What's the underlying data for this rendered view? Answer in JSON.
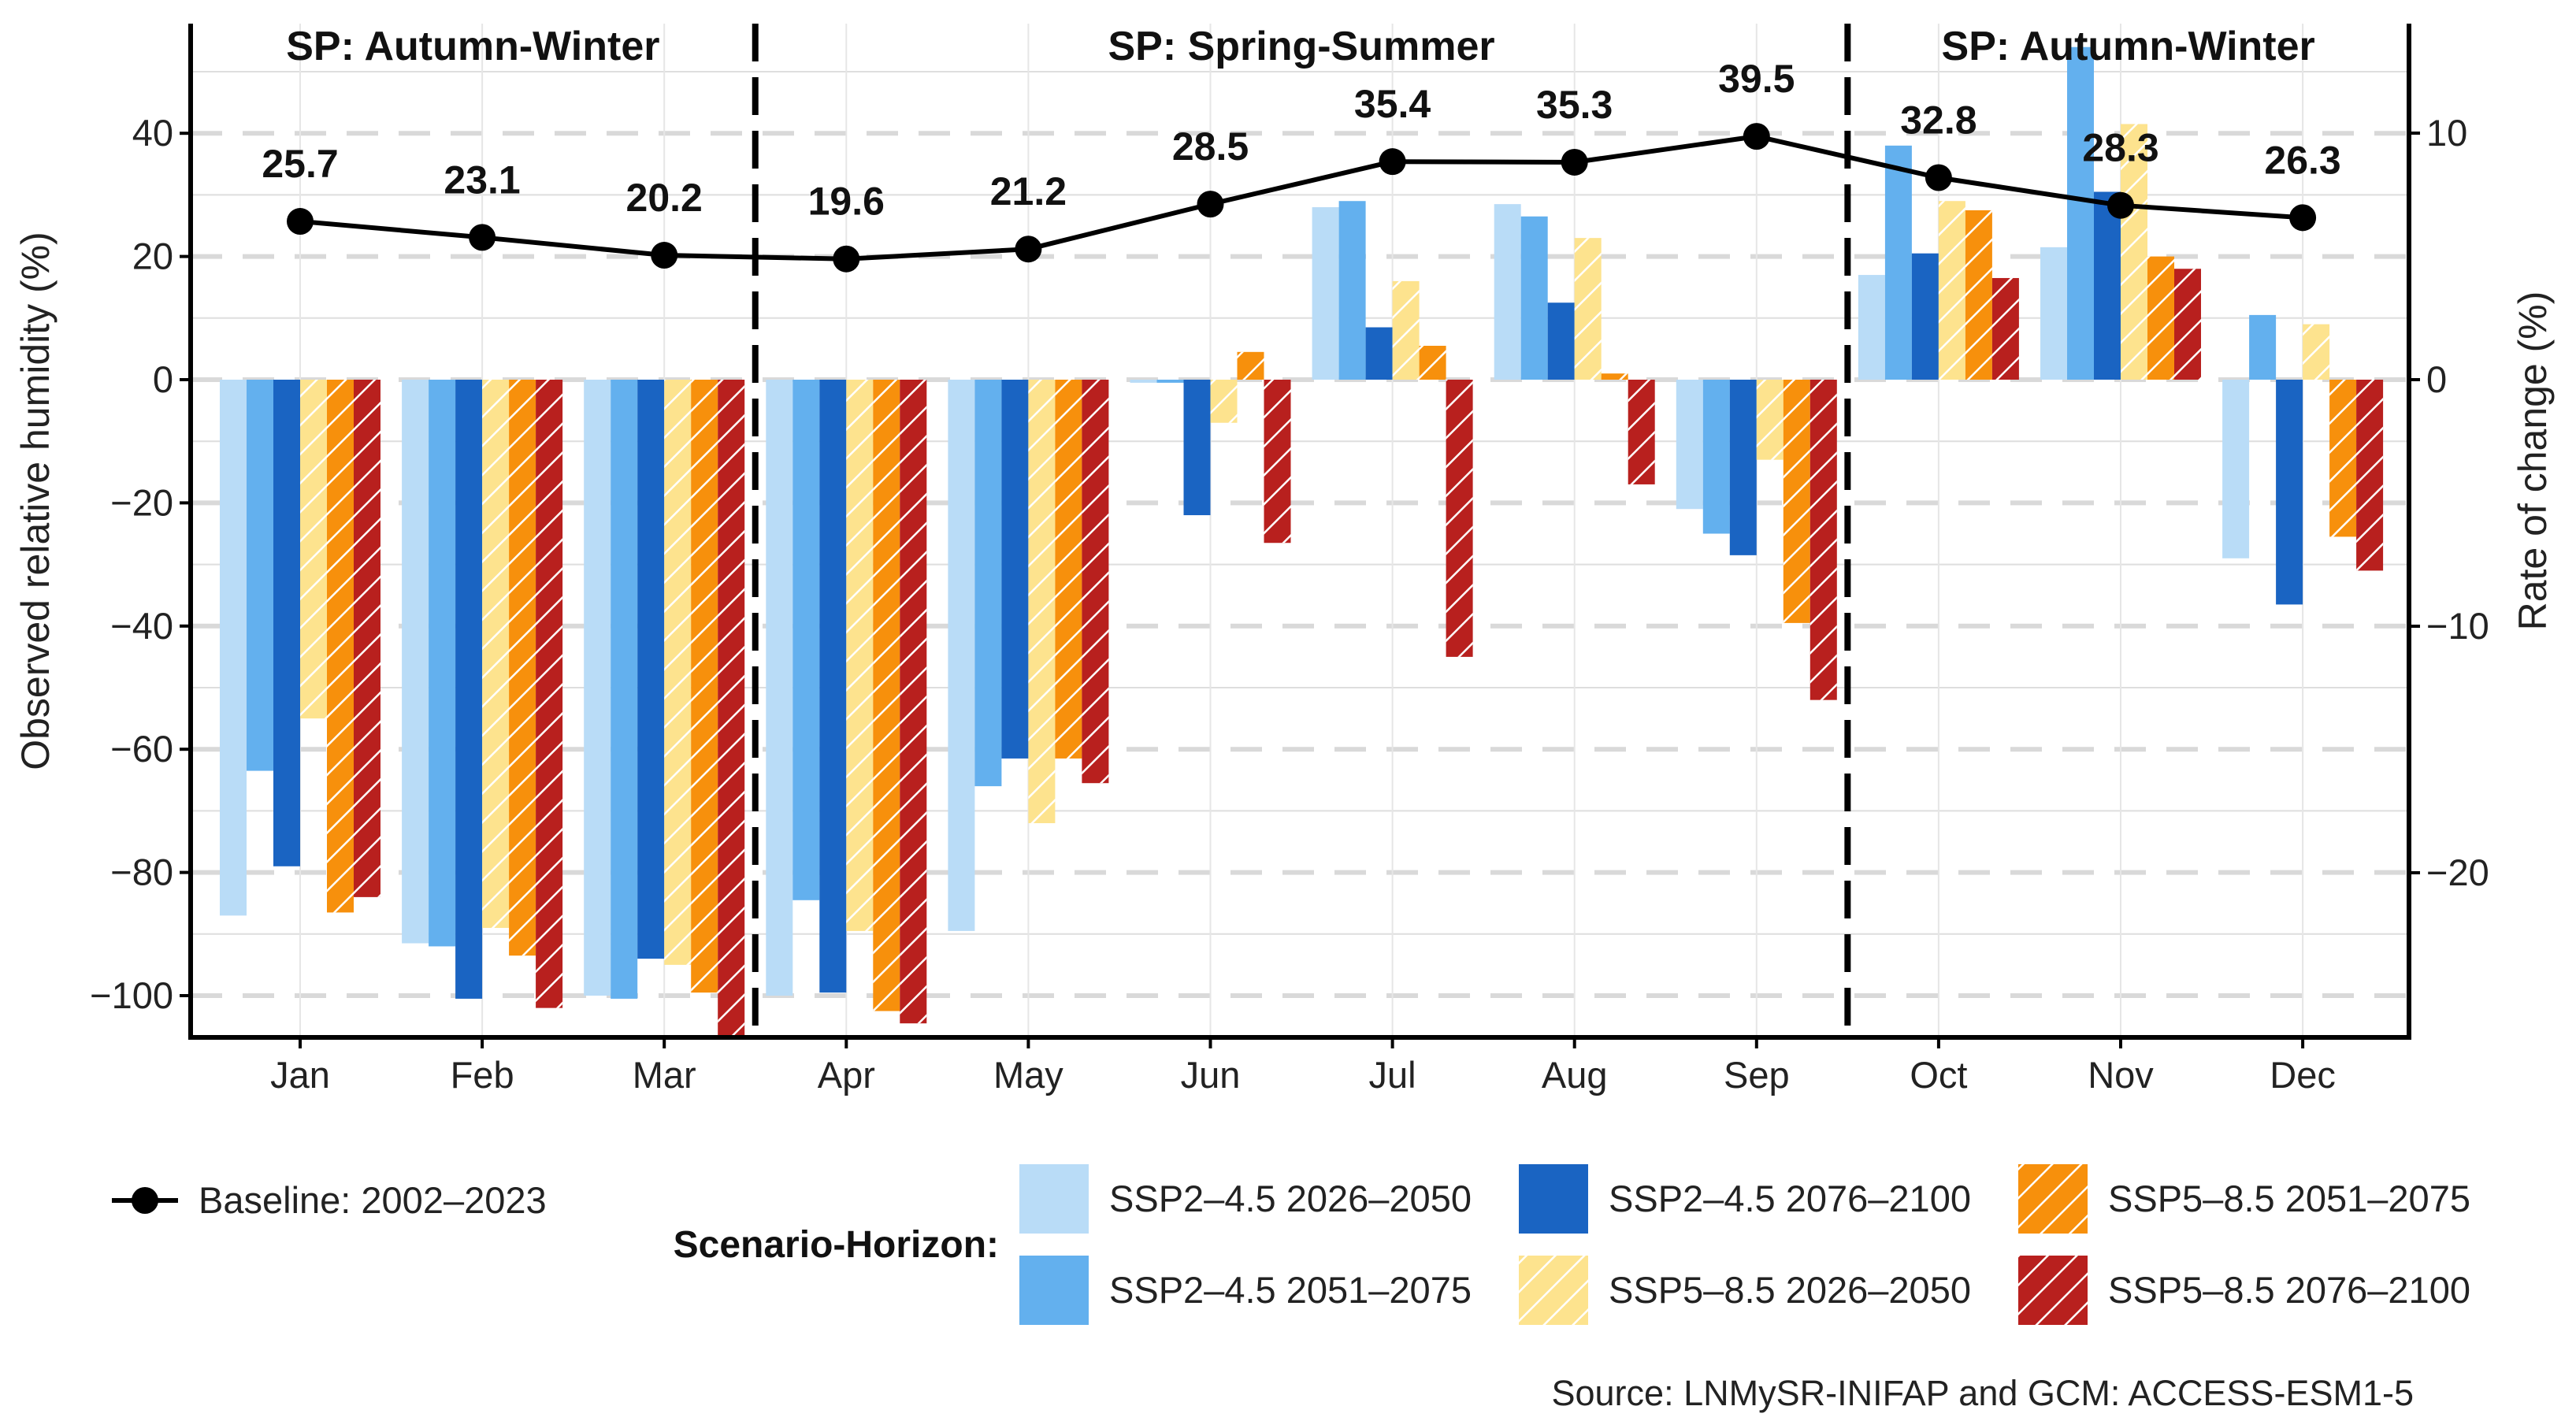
{
  "chart_data": {
    "type": "bar",
    "categories": [
      "Jan",
      "Feb",
      "Mar",
      "Apr",
      "May",
      "Jun",
      "Jul",
      "Aug",
      "Sep",
      "Oct",
      "Nov",
      "Dec"
    ],
    "y_left": {
      "label": "Observed relative humidity (%)",
      "lim": [
        -107,
        54
      ],
      "ticks": [
        -100,
        -80,
        -60,
        -40,
        -20,
        0,
        20,
        40
      ]
    },
    "y_right": {
      "label": "Rate of change (%)",
      "ticks": [
        -20,
        -10,
        0,
        10
      ]
    },
    "grid": true,
    "series": [
      {
        "name": "SSP2–4.5 2026–2050",
        "color": "#b9dcf7",
        "hatched": false,
        "values": [
          -87,
          -91.5,
          -100,
          -100,
          -89.5,
          -0.5,
          28,
          28.5,
          -21,
          17,
          21.5,
          -29
        ]
      },
      {
        "name": "SSP2–4.5 2051–2075",
        "color": "#63b0ee",
        "hatched": false,
        "values": [
          -63.5,
          -92,
          -100.5,
          -84.5,
          -66,
          -0.5,
          29,
          26.5,
          -25,
          38,
          54,
          10.5
        ]
      },
      {
        "name": "SSP2–4.5 2076–2100",
        "color": "#1a64c2",
        "hatched": false,
        "values": [
          -79,
          -100.5,
          -94,
          -99.5,
          -61.5,
          -22,
          8.5,
          12.5,
          -28.5,
          20.5,
          30.5,
          -36.5
        ]
      },
      {
        "name": "SSP5–8.5 2026–2050",
        "color": "#fde38e",
        "hatched": true,
        "values": [
          -55,
          -89,
          -95,
          -89.5,
          -72,
          -7,
          16,
          23,
          -13,
          29,
          41.5,
          9
        ]
      },
      {
        "name": "SSP5–8.5 2051–2075",
        "color": "#f7900c",
        "hatched": true,
        "values": [
          -86.5,
          -93.5,
          -99.5,
          -102.5,
          -61.5,
          4.5,
          5.5,
          1,
          -39.5,
          27.5,
          20,
          -25.5
        ]
      },
      {
        "name": "SSP5–8.5 2076–2100",
        "color": "#b8201e",
        "hatched": true,
        "values": [
          -84,
          -102,
          -107,
          -104.5,
          -65.5,
          -26.5,
          -45,
          -17,
          -52,
          16.5,
          18,
          -31
        ]
      }
    ],
    "baseline": {
      "name": "Baseline: 2002–2023",
      "values": [
        25.7,
        23.1,
        20.2,
        19.6,
        21.2,
        28.5,
        35.4,
        35.3,
        39.5,
        32.8,
        28.3,
        26.3
      ],
      "labels": [
        "25.7",
        "23.1",
        "20.2",
        "19.6",
        "21.2",
        "28.5",
        "35.4",
        "35.3",
        "39.5",
        "32.8",
        "28.3",
        "26.3"
      ]
    },
    "seasons": [
      {
        "label": "SP: Autumn-Winter"
      },
      {
        "label": "SP: Spring-Summer"
      },
      {
        "label": "SP: Autumn-Winter"
      }
    ],
    "legend": {
      "title": "Scenario-Horizon:",
      "placement": "bottom"
    },
    "source": "Source: LNMySR-INIFAP and GCM: ACCESS-ESM1-5"
  }
}
